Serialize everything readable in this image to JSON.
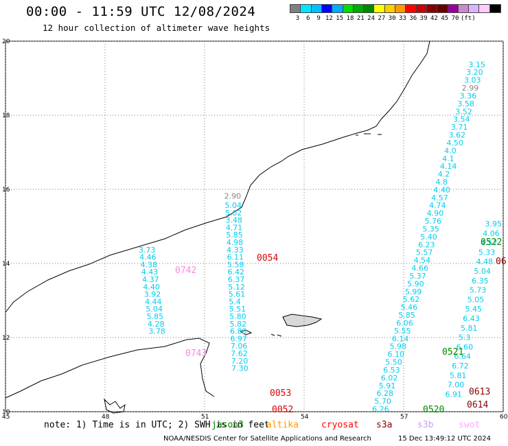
{
  "header": {
    "title": "00:00 - 11:59 UTC 12/08/2024",
    "subtitle": "12 hour collection of altimeter wave heights"
  },
  "scale": {
    "unit": "(ft)",
    "colors": [
      "#808080",
      "#00e5ff",
      "#00bfff",
      "#0000ff",
      "#00aaff",
      "#00dd00",
      "#00aa00",
      "#008800",
      "#ffff00",
      "#ffcc00",
      "#ff9900",
      "#ff0000",
      "#cc0000",
      "#880000",
      "#660000",
      "#990099",
      "#cc88cc",
      "#ddb3ff",
      "#ffccff",
      "#000000"
    ],
    "labels": [
      "3",
      "6",
      "9",
      "12",
      "15",
      "18",
      "21",
      "24",
      "27",
      "30",
      "33",
      "36",
      "39",
      "42",
      "45",
      "70"
    ]
  },
  "axes": {
    "x_ticks": [
      "45",
      "48",
      "51",
      "54",
      "57",
      "60"
    ],
    "y_ticks": [
      "20",
      "18",
      "16",
      "14",
      "12",
      "10"
    ],
    "lon_range": [
      45,
      60
    ],
    "lat_range": [
      10,
      20
    ]
  },
  "note": "note: 1) Time is in UTC; 2) SWH is in feet",
  "satellites": [
    {
      "name": "jason3",
      "color": "#008000"
    },
    {
      "name": "altika",
      "color": "#ff9900"
    },
    {
      "name": "cryosat",
      "color": "#ff0000"
    },
    {
      "name": "s3a",
      "color": "#880000"
    },
    {
      "name": "s3b",
      "color": "#cc99ff"
    },
    {
      "name": "swot",
      "color": "#ffaaff"
    }
  ],
  "credit": "NOAA/NESDIS Center for Satellite Applications and Research",
  "generated": "15 Dec 13:49:12 UTC 2024",
  "tracks": [
    {
      "id": "t1",
      "color": "#00ccee",
      "pass": "0742",
      "pass_color": "#ff88dd",
      "points": [
        {
          "lat": 14.3,
          "v": "3.73"
        },
        {
          "lat": 14.1,
          "v": "4.46"
        },
        {
          "lat": 13.9,
          "v": "4.38"
        },
        {
          "lat": 13.7,
          "v": "4.43"
        },
        {
          "lat": 13.5,
          "v": "4.37"
        },
        {
          "lat": 13.3,
          "v": "4.40"
        },
        {
          "lat": 13.1,
          "v": "3.92"
        },
        {
          "lat": 12.9,
          "v": "4.44"
        },
        {
          "lat": 12.7,
          "v": "5.04"
        },
        {
          "lat": 12.5,
          "v": "5.85"
        },
        {
          "lat": 12.3,
          "v": "4.28"
        },
        {
          "lat": 12.1,
          "v": "3.78"
        }
      ],
      "start_lon": 49.3,
      "end_lon": 49.6
    },
    {
      "id": "t2",
      "color": "#00ccee",
      "pass": "0054",
      "pass_color": "#dd0000",
      "points": [
        {
          "lat": 15.5,
          "v": "5.04"
        },
        {
          "lat": 15.3,
          "v": "5.02"
        },
        {
          "lat": 15.1,
          "v": "3.48"
        },
        {
          "lat": 14.9,
          "v": "4.71"
        },
        {
          "lat": 14.7,
          "v": "5.85"
        },
        {
          "lat": 14.5,
          "v": "4.98"
        },
        {
          "lat": 14.3,
          "v": "4.33"
        },
        {
          "lat": 14.1,
          "v": "6.11"
        },
        {
          "lat": 13.9,
          "v": "5.58"
        },
        {
          "lat": 13.7,
          "v": "6.42"
        },
        {
          "lat": 13.5,
          "v": "6.37"
        },
        {
          "lat": 13.3,
          "v": "5.12"
        },
        {
          "lat": 13.1,
          "v": "5.61"
        },
        {
          "lat": 12.9,
          "v": "5.4"
        },
        {
          "lat": 12.7,
          "v": "5.51"
        },
        {
          "lat": 12.5,
          "v": "5.80"
        },
        {
          "lat": 12.3,
          "v": "5.82"
        },
        {
          "lat": 12.1,
          "v": "6.88"
        },
        {
          "lat": 11.9,
          "v": "6.97"
        },
        {
          "lat": 11.7,
          "v": "7.06"
        },
        {
          "lat": 11.5,
          "v": "7.62"
        },
        {
          "lat": 11.3,
          "v": "7.20"
        },
        {
          "lat": 11.1,
          "v": "7.30"
        }
      ],
      "start_lon": 51.9,
      "end_lon": 52.1
    }
  ],
  "track_top_value": {
    "v": "2.90",
    "color": "#888888"
  },
  "pass_labels": [
    {
      "text": "0054",
      "color": "#dd0000"
    },
    {
      "text": "0742",
      "color": "#ff88dd"
    },
    {
      "text": "0743",
      "color": "#ff88dd"
    },
    {
      "text": "0053",
      "color": "#dd0000"
    },
    {
      "text": "0052",
      "color": "#dd0000"
    },
    {
      "text": "0522",
      "color": "#008800"
    },
    {
      "text": "0521",
      "color": "#008800"
    },
    {
      "text": "0520",
      "color": "#008800"
    },
    {
      "text": "0613",
      "color": "#880000"
    },
    {
      "text": "0614",
      "color": "#880000"
    },
    {
      "text": "06",
      "color": "#880000"
    }
  ],
  "east_track_a": [
    "3.15",
    "3.20",
    "3.03",
    "2.99",
    "3.36",
    "3.58",
    "3.52",
    "3.54",
    "3.71",
    "3.62",
    "4.50",
    "4.0",
    "4.1",
    "4.14",
    "4.2",
    "4.8",
    "4.40",
    "4.57",
    "4.74",
    "4.90",
    "5.76",
    "5.35",
    "5.40",
    "6.23",
    "5.57",
    "4.54",
    "4.66",
    "5.37",
    "5.90",
    "5.99",
    "5.62",
    "5.46",
    "5.85",
    "6.06",
    "5.55",
    "6.14",
    "5.98",
    "6.10",
    "5.50",
    "6.53",
    "6.02",
    "5.91",
    "6.28",
    "5.70",
    "6.26"
  ],
  "east_track_b": [
    "3.95",
    "4.06",
    "4.57",
    "5.33",
    "4.48",
    "5.04",
    "6.35",
    "5.73",
    "5.05",
    "5.45",
    "6.43",
    "5.81",
    "5.3",
    "6.60",
    "6.64",
    "6.72",
    "5.81",
    "7.00",
    "6.91"
  ]
}
